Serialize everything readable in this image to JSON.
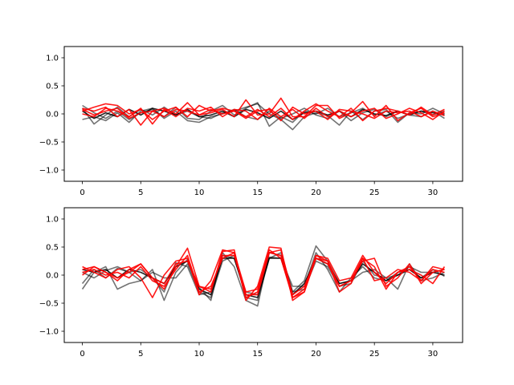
{
  "chart_data": [
    {
      "type": "line",
      "xlim": [
        -1.55,
        32.55
      ],
      "ylim": [
        -1.2,
        1.2
      ],
      "xticks": [
        0,
        5,
        10,
        15,
        20,
        25,
        30
      ],
      "yticks": [
        -1.0,
        -0.5,
        0.0,
        0.5,
        1.0
      ],
      "xtick_labels": [
        "0",
        "5",
        "10",
        "15",
        "20",
        "25",
        "30"
      ],
      "ytick_labels": [
        "−1.0",
        "−0.5",
        "0.0",
        "0.5",
        "1.0"
      ],
      "grid": false,
      "series": [
        {
          "color": "#000000",
          "opacity": 0.55,
          "values": [
            0.15,
            0.02,
            -0.08,
            0.05,
            -0.1,
            0.02,
            0.08,
            -0.05,
            0.12,
            -0.08,
            -0.1,
            0.05,
            0.15,
            -0.02,
            0.1,
            0.2,
            -0.22,
            -0.05,
            -0.15,
            0.05,
            0.0,
            0.1,
            -0.05,
            0.02,
            0.1,
            -0.02,
            0.05,
            -0.08,
            0.0,
            0.05,
            -0.02,
            0.05
          ]
        },
        {
          "color": "#000000",
          "opacity": 0.55,
          "values": [
            0.1,
            -0.18,
            -0.02,
            0.12,
            -0.05,
            0.08,
            -0.02,
            0.12,
            -0.02,
            0.05,
            -0.05,
            -0.08,
            0.02,
            0.05,
            0.12,
            0.18,
            0.0,
            -0.1,
            -0.28,
            -0.05,
            0.02,
            -0.03,
            -0.2,
            0.05,
            -0.1,
            0.05,
            0.08,
            -0.15,
            0.02,
            0.0,
            0.1,
            0.0
          ]
        },
        {
          "color": "#000000",
          "opacity": 0.55,
          "values": [
            -0.1,
            -0.05,
            -0.12,
            0.02,
            -0.15,
            0.05,
            0.1,
            -0.08,
            0.05,
            -0.12,
            -0.15,
            -0.05,
            0.0,
            0.08,
            -0.05,
            -0.1,
            0.05,
            -0.08,
            0.0,
            0.1,
            -0.02,
            -0.08,
            0.05,
            -0.12,
            0.02,
            0.08,
            -0.05,
            0.05,
            -0.02,
            -0.05,
            0.05,
            -0.08
          ]
        },
        {
          "color": "#000000",
          "opacity": 0.85,
          "values": [
            0.05,
            -0.08,
            0.02,
            -0.05,
            0.08,
            -0.02,
            0.1,
            0.05,
            -0.02,
            0.08,
            -0.05,
            -0.02,
            0.05,
            -0.05,
            0.08,
            0.02,
            -0.08,
            0.05,
            -0.1,
            0.02,
            0.05,
            -0.02,
            0.05,
            -0.05,
            0.08,
            0.0,
            -0.03,
            0.05,
            -0.02,
            0.05,
            0.02,
            -0.02
          ]
        },
        {
          "color": "#ff0000",
          "opacity": 0.9,
          "values": [
            0.05,
            0.12,
            0.18,
            0.15,
            0.0,
            0.08,
            -0.1,
            0.05,
            0.12,
            -0.05,
            0.15,
            0.05,
            0.1,
            0.05,
            -0.05,
            0.08,
            -0.05,
            0.1,
            -0.1,
            0.05,
            0.18,
            0.05,
            -0.05,
            0.1,
            -0.12,
            0.05,
            0.1,
            0.05,
            -0.02,
            0.12,
            -0.02,
            0.08
          ]
        },
        {
          "color": "#ff0000",
          "opacity": 0.9,
          "values": [
            0.1,
            0.05,
            0.12,
            -0.05,
            0.08,
            -0.2,
            0.05,
            0.1,
            0.0,
            0.2,
            -0.02,
            0.02,
            0.08,
            -0.05,
            0.25,
            -0.02,
            0.0,
            0.28,
            -0.05,
            -0.05,
            0.15,
            0.15,
            -0.08,
            0.02,
            0.22,
            -0.05,
            0.15,
            -0.12,
            0.02,
            0.1,
            -0.05,
            0.02
          ]
        },
        {
          "color": "#ff0000",
          "opacity": 0.9,
          "values": [
            0.0,
            -0.05,
            0.1,
            0.05,
            -0.05,
            0.1,
            -0.18,
            0.08,
            -0.05,
            0.1,
            0.05,
            0.12,
            -0.05,
            0.08,
            0.05,
            -0.1,
            0.1,
            -0.05,
            0.08,
            -0.08,
            0.1,
            -0.05,
            0.05,
            -0.05,
            0.05,
            0.1,
            -0.08,
            0.0,
            0.1,
            0.02,
            -0.1,
            0.05
          ]
        },
        {
          "color": "#ff0000",
          "opacity": 0.9,
          "values": [
            0.08,
            -0.02,
            0.05,
            0.1,
            -0.08,
            0.02,
            0.05,
            -0.05,
            0.08,
            0.05,
            -0.02,
            0.08,
            0.0,
            0.05,
            -0.08,
            0.05,
            0.08,
            -0.12,
            0.12,
            0.0,
            0.05,
            -0.1,
            0.08,
            0.05,
            0.0,
            -0.08,
            0.05,
            0.02,
            0.05,
            -0.05,
            0.05,
            -0.03
          ]
        }
      ]
    },
    {
      "type": "line",
      "xlim": [
        -1.55,
        32.55
      ],
      "ylim": [
        -1.2,
        1.2
      ],
      "xticks": [
        0,
        5,
        10,
        15,
        20,
        25,
        30
      ],
      "yticks": [
        -1.0,
        -0.5,
        0.0,
        0.5,
        1.0
      ],
      "xtick_labels": [
        "0",
        "5",
        "10",
        "15",
        "20",
        "25",
        "30"
      ],
      "ytick_labels": [
        "−1.0",
        "−0.5",
        "0.0",
        "0.5",
        "1.0"
      ],
      "grid": false,
      "series": [
        {
          "color": "#000000",
          "opacity": 0.55,
          "values": [
            -0.25,
            0.05,
            0.15,
            -0.25,
            -0.15,
            -0.1,
            0.1,
            -0.45,
            0.05,
            0.28,
            -0.22,
            -0.45,
            0.4,
            0.15,
            -0.45,
            -0.55,
            0.4,
            0.35,
            -0.3,
            -0.1,
            0.52,
            0.25,
            -0.15,
            -0.1,
            0.05,
            0.1,
            -0.05,
            -0.25,
            0.2,
            -0.1,
            -0.05,
            0.05
          ]
        },
        {
          "color": "#000000",
          "opacity": 0.55,
          "values": [
            -0.15,
            0.1,
            -0.05,
            0.12,
            0.05,
            0.1,
            -0.05,
            -0.3,
            0.22,
            0.15,
            -0.35,
            -0.3,
            0.35,
            0.3,
            -0.3,
            -0.35,
            0.32,
            0.3,
            -0.2,
            -0.2,
            0.4,
            0.1,
            -0.3,
            -0.05,
            0.15,
            -0.05,
            -0.1,
            0.05,
            0.1,
            -0.05,
            0.1,
            -0.02
          ]
        },
        {
          "color": "#000000",
          "opacity": 0.55,
          "values": [
            0.05,
            -0.05,
            0.08,
            0.15,
            0.05,
            -0.1,
            0.05,
            -0.05,
            -0.05,
            0.2,
            -0.3,
            -0.4,
            0.25,
            0.35,
            -0.4,
            -0.45,
            0.3,
            0.4,
            -0.3,
            -0.25,
            0.25,
            0.15,
            -0.2,
            -0.15,
            0.25,
            0.0,
            -0.05,
            0.0,
            0.15,
            0.05,
            0.05,
            0.1
          ]
        },
        {
          "color": "#000000",
          "opacity": 0.85,
          "values": [
            0.1,
            0.05,
            0.1,
            -0.05,
            0.1,
            0.05,
            -0.05,
            -0.15,
            0.15,
            0.25,
            -0.25,
            -0.35,
            0.3,
            0.3,
            -0.35,
            -0.4,
            0.3,
            0.3,
            -0.35,
            -0.15,
            0.3,
            0.2,
            -0.15,
            -0.1,
            0.2,
            0.05,
            -0.1,
            0.0,
            0.1,
            -0.05,
            0.05,
            0.0
          ]
        },
        {
          "color": "#ff0000",
          "opacity": 0.9,
          "values": [
            0.0,
            0.15,
            0.05,
            -0.1,
            0.1,
            0.2,
            -0.05,
            -0.25,
            0.15,
            0.48,
            -0.2,
            -0.3,
            0.42,
            0.45,
            -0.45,
            -0.2,
            0.5,
            0.48,
            -0.45,
            -0.3,
            0.35,
            0.3,
            -0.1,
            -0.05,
            0.35,
            0.05,
            -0.15,
            0.05,
            0.15,
            -0.1,
            0.15,
            0.1
          ]
        },
        {
          "color": "#ff0000",
          "opacity": 0.9,
          "values": [
            0.15,
            0.05,
            -0.05,
            0.1,
            0.15,
            -0.05,
            -0.4,
            0.0,
            0.25,
            0.3,
            -0.35,
            -0.1,
            0.45,
            0.4,
            -0.4,
            -0.3,
            0.45,
            0.3,
            -0.4,
            -0.25,
            0.35,
            0.25,
            -0.3,
            -0.15,
            0.3,
            0.15,
            -0.25,
            0.05,
            0.1,
            0.0,
            -0.15,
            0.15
          ]
        },
        {
          "color": "#ff0000",
          "opacity": 0.9,
          "values": [
            0.05,
            0.1,
            0.0,
            0.05,
            -0.05,
            0.15,
            -0.1,
            -0.2,
            0.1,
            0.35,
            -0.3,
            -0.2,
            0.3,
            0.4,
            -0.3,
            -0.25,
            0.4,
            0.45,
            -0.35,
            -0.2,
            0.3,
            0.2,
            -0.2,
            -0.1,
            0.25,
            0.3,
            -0.2,
            -0.05,
            0.2,
            -0.15,
            0.05,
            0.1
          ]
        },
        {
          "color": "#ff0000",
          "opacity": 0.9,
          "values": [
            0.1,
            0.15,
            0.05,
            -0.05,
            0.05,
            0.2,
            -0.05,
            -0.15,
            0.2,
            0.25,
            -0.2,
            -0.25,
            0.35,
            0.35,
            -0.35,
            -0.35,
            0.4,
            0.35,
            -0.4,
            -0.3,
            0.3,
            0.25,
            -0.2,
            -0.1,
            0.3,
            -0.1,
            -0.05,
            0.1,
            0.05,
            -0.1,
            0.1,
            0.05
          ]
        }
      ]
    }
  ]
}
